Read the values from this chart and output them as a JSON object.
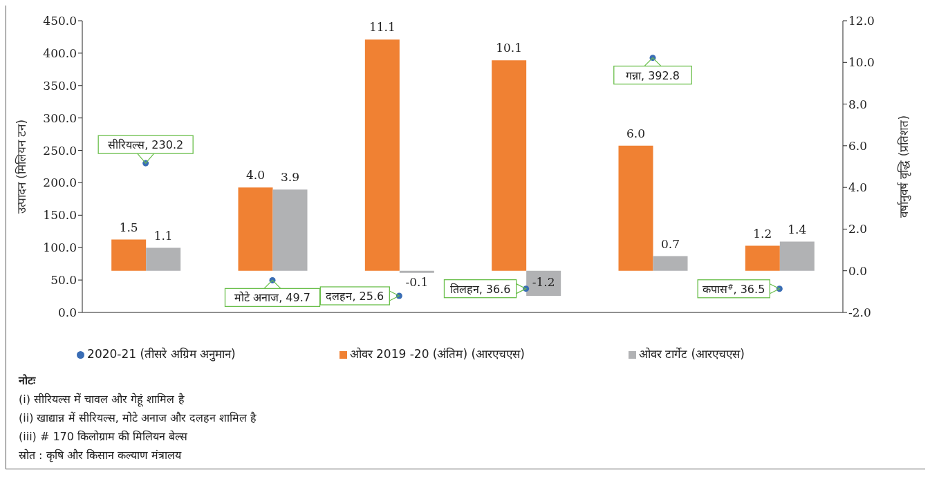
{
  "chart_data": {
    "type": "bar",
    "ylabel": "उत्पादन (मिलियन टन)",
    "y2label": "वर्षानुवर्ष वृद्धि (प्रतिशत)",
    "categories": [
      null,
      null,
      null,
      null,
      null,
      null
    ],
    "series": [
      {
        "name": "ओवर 2019 -20 (अंतिम) (आरएचएस)",
        "color": "#f08133",
        "axis": "y2",
        "values": [
          1.5,
          4.0,
          11.1,
          10.1,
          6.0,
          1.2
        ],
        "value_labels": [
          "1.5",
          "4.0",
          "11.1",
          "10.1",
          "6.0",
          "1.2"
        ]
      },
      {
        "name": "ओवर टार्गेट (आरएचएस)",
        "color": "#b1b2b4",
        "axis": "y2",
        "values": [
          1.1,
          3.9,
          -0.1,
          -1.2,
          0.7,
          1.4
        ],
        "value_labels": [
          "1.1",
          "3.9",
          "-0.1",
          "-1.2",
          "0.7",
          "1.4"
        ]
      },
      {
        "name": "2020-21 (तीसरे अग्रिम अनुमान)",
        "type": "scatter",
        "color": "#3a6db5",
        "marker": "circle",
        "values": [
          230.2,
          49.7,
          25.6,
          36.6,
          392.8,
          36.5
        ],
        "value_labels": [
          "सीरियल्स, 230.2",
          "मोटे अनाज, 49.7",
          "दलहन, 25.6",
          "तिलहन, 36.6",
          "गन्ना, 392.8",
          "कपास$^{#}$, 36.5"
        ]
      }
    ],
    "ylim": [
      0,
      450
    ],
    "yticks": [
      {
        "value": 0,
        "label": "0.0"
      },
      {
        "value": 50,
        "label": "50.0"
      },
      {
        "value": 100,
        "label": "100.0"
      },
      {
        "value": 150,
        "label": "150.0"
      },
      {
        "value": 200,
        "label": "200.0"
      },
      {
        "value": 250,
        "label": "250.0"
      },
      {
        "value": 300,
        "label": "300.0"
      },
      {
        "value": 350,
        "label": "350.0"
      },
      {
        "value": 400,
        "label": "400.0"
      },
      {
        "value": 450,
        "label": "450.0"
      }
    ],
    "y2lim": [
      -2,
      12
    ],
    "y2ticks": [
      {
        "value": -2,
        "label": "-2.0"
      },
      {
        "value": 0,
        "label": "0.0"
      },
      {
        "value": 2,
        "label": "2.0"
      },
      {
        "value": 4,
        "label": "4.0"
      },
      {
        "value": 6,
        "label": "6.0"
      },
      {
        "value": 8,
        "label": "8.0"
      },
      {
        "value": 10,
        "label": "10.0"
      },
      {
        "value": 12,
        "label": "12.0"
      }
    ],
    "grid": false,
    "legend": "bottom",
    "annotations": [
      "नोटः",
      "(i) सीरियल्स में चावल और गेहूं शामिल है",
      "(ii) खाद्यान्न में सीरियल्स, मोटे अनाज और दलहन शामिल है",
      "(iii) # 170 किलोग्राम की मिलियन बेल्स",
      "स्रोत : कृषि और किसान कल्याण मंत्रालय"
    ]
  }
}
